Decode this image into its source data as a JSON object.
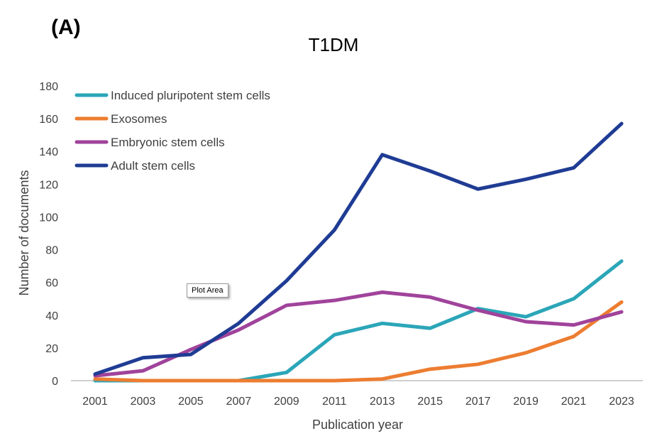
{
  "panel_label": "(A)",
  "tooltip": "Plot Area",
  "chart_data": {
    "type": "line",
    "title": "T1DM",
    "xlabel": "Publication year",
    "ylabel": "Number of documents",
    "ylim": [
      0,
      180
    ],
    "ytick_step": 20,
    "categories": [
      "2001",
      "2003",
      "2005",
      "2007",
      "2009",
      "2011",
      "2013",
      "2015",
      "2017",
      "2019",
      "2021",
      "2023"
    ],
    "legend_position": "top-left",
    "grid": false,
    "series": [
      {
        "name": "Induced pluripotent stem cells",
        "color": "#2BA6B8",
        "values": [
          0,
          0,
          0,
          0,
          5,
          28,
          35,
          32,
          44,
          39,
          50,
          73
        ]
      },
      {
        "name": "Exosomes",
        "color": "#ED7D31",
        "values": [
          1,
          0,
          0,
          0,
          0,
          0,
          1,
          7,
          10,
          17,
          27,
          48
        ]
      },
      {
        "name": "Embryonic stem cells",
        "color": "#A0439B",
        "values": [
          3,
          6,
          19,
          31,
          46,
          49,
          54,
          51,
          43,
          36,
          34,
          42
        ]
      },
      {
        "name": "Adult stem cells",
        "color": "#1F3C94",
        "values": [
          4,
          14,
          16,
          35,
          61,
          92,
          138,
          128,
          117,
          123,
          130,
          157
        ]
      }
    ]
  }
}
